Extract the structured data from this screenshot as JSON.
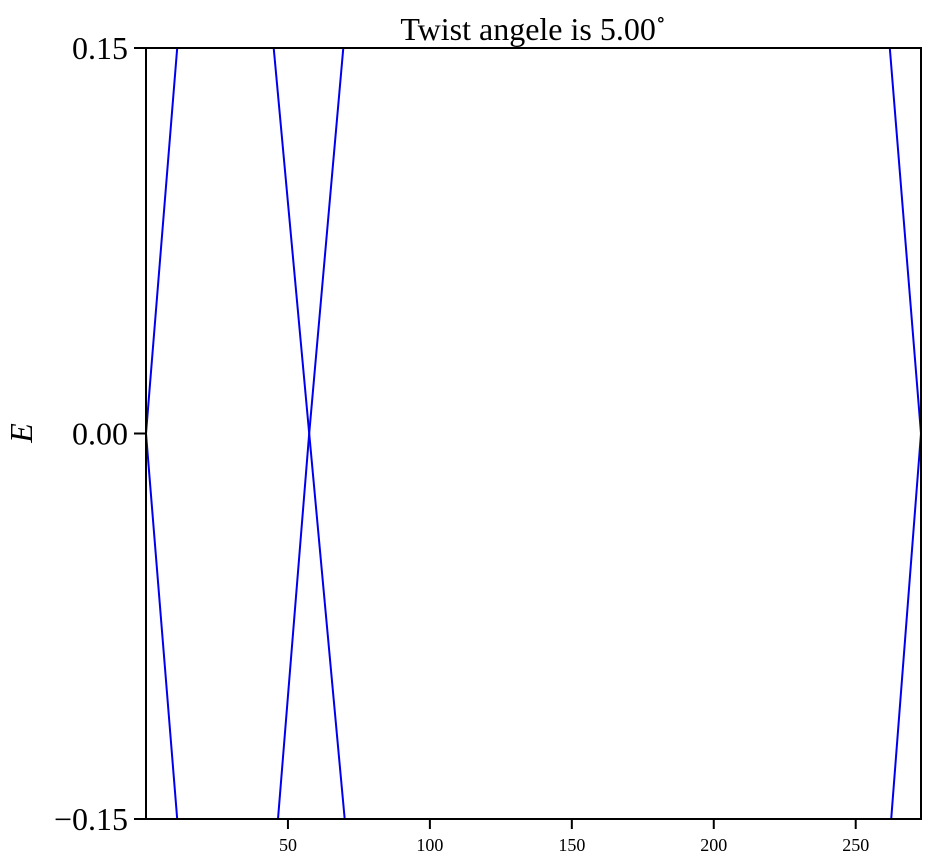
{
  "chart_data": {
    "type": "line",
    "title": "Twist angele is 5.00",
    "title_superscript": "∘",
    "xlabel": "",
    "ylabel": "E",
    "xlim": [
      0,
      273
    ],
    "ylim": [
      -0.15,
      0.15
    ],
    "x_ticks": [
      50,
      100,
      150,
      200,
      250
    ],
    "y_ticks": [
      -0.15,
      0.0,
      0.15
    ],
    "y_tick_labels": [
      "−0.15",
      "0.00",
      "0.15"
    ],
    "grid": false,
    "line_color": "#0000ee",
    "series": [
      {
        "x": [
          0,
          11
        ],
        "y": [
          0.0,
          0.15
        ]
      },
      {
        "x": [
          0,
          11
        ],
        "y": [
          0.0,
          -0.15
        ]
      },
      {
        "x": [
          45,
          57.5,
          70
        ],
        "y": [
          0.15,
          0.0,
          -0.15
        ]
      },
      {
        "x": [
          46.5,
          57.5,
          69.5
        ],
        "y": [
          -0.15,
          0.0,
          0.15
        ]
      },
      {
        "x": [
          262,
          273
        ],
        "y": [
          0.15,
          0.0
        ]
      },
      {
        "x": [
          262.5,
          273
        ],
        "y": [
          -0.15,
          0.0
        ]
      }
    ]
  }
}
